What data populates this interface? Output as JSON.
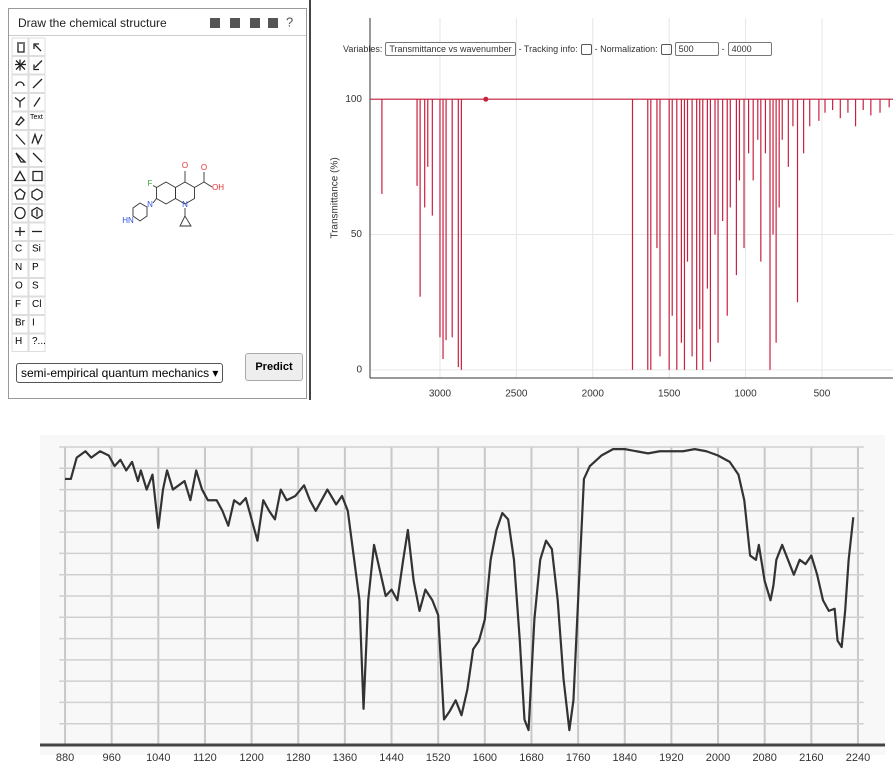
{
  "editor": {
    "title": "Draw the chemical structure",
    "help_icon": "?",
    "text_tool": "Text",
    "elements": [
      "C",
      "Si",
      "N",
      "P",
      "O",
      "S",
      "F",
      "Cl",
      "Br",
      "I",
      "H",
      "?..."
    ],
    "atoms": [
      "F",
      "O",
      "O",
      "OH",
      "N",
      "N",
      "HN"
    ],
    "method": "semi-empirical quantum mechanics",
    "button": "Predict"
  },
  "chart_data": [
    {
      "type": "stick",
      "ylabel": "Transmittance (%)",
      "color": "#c8203f",
      "baseline": 100,
      "controls": {
        "variables_label": "Variables:",
        "variables": "Transmittance vs wavenumber",
        "tracking": "- Tracking info:",
        "normalization": "- Normalization:",
        "min": 500,
        "dash": "-",
        "max": 4000
      },
      "xlim": [
        3458,
        35
      ],
      "ylim": [
        -3,
        130
      ],
      "xticks": [
        3000,
        2500,
        2000,
        1500,
        1000,
        500
      ],
      "yticks": [
        0,
        50,
        100
      ],
      "grid": true,
      "point": {
        "x": 2700,
        "y": 100
      },
      "x": [
        3380,
        3150,
        3130,
        3100,
        3080,
        3050,
        3000,
        2980,
        2960,
        2920,
        2880,
        2860,
        1740,
        1640,
        1620,
        1580,
        1560,
        1500,
        1480,
        1450,
        1420,
        1400,
        1380,
        1350,
        1320,
        1300,
        1280,
        1250,
        1230,
        1200,
        1180,
        1150,
        1120,
        1100,
        1060,
        1040,
        1010,
        980,
        950,
        920,
        900,
        870,
        840,
        820,
        800,
        780,
        760,
        720,
        690,
        660,
        620,
        580,
        520,
        480,
        430,
        380,
        330,
        280,
        230,
        180,
        120,
        60
      ],
      "values": [
        65,
        68,
        27,
        60,
        75,
        57,
        12,
        4,
        11,
        12,
        1,
        0,
        0,
        0,
        0,
        45,
        5,
        0,
        20,
        0,
        10,
        0,
        40,
        5,
        0,
        15,
        0,
        30,
        3,
        50,
        10,
        55,
        20,
        60,
        35,
        70,
        45,
        80,
        70,
        85,
        40,
        80,
        0,
        50,
        10,
        60,
        85,
        75,
        90,
        25,
        80,
        90,
        92,
        95,
        96,
        93,
        95,
        90,
        96,
        94,
        95,
        97
      ]
    },
    {
      "type": "line",
      "color": "#333333",
      "show_ytick_labels": false,
      "grid": true,
      "xlim": [
        870,
        2250
      ],
      "ylim": [
        0,
        14
      ],
      "xticks": [
        880,
        960,
        1040,
        1120,
        1200,
        1280,
        1360,
        1440,
        1520,
        1600,
        1680,
        1760,
        1840,
        1920,
        2000,
        2080,
        2160,
        2240
      ],
      "yticks": [
        0,
        1,
        2,
        3,
        4,
        5,
        6,
        7,
        8,
        9,
        10,
        11,
        12,
        13,
        14
      ],
      "x": [
        880,
        890,
        900,
        915,
        925,
        940,
        955,
        965,
        975,
        985,
        995,
        1005,
        1010,
        1020,
        1030,
        1040,
        1048,
        1055,
        1065,
        1075,
        1085,
        1095,
        1105,
        1115,
        1125,
        1140,
        1150,
        1160,
        1170,
        1180,
        1190,
        1200,
        1210,
        1220,
        1230,
        1240,
        1250,
        1260,
        1275,
        1290,
        1300,
        1310,
        1320,
        1330,
        1345,
        1355,
        1365,
        1375,
        1385,
        1392,
        1400,
        1410,
        1420,
        1430,
        1440,
        1450,
        1460,
        1468,
        1478,
        1488,
        1498,
        1510,
        1520,
        1530,
        1540,
        1550,
        1560,
        1570,
        1580,
        1590,
        1600,
        1610,
        1620,
        1630,
        1640,
        1650,
        1660,
        1668,
        1675,
        1685,
        1695,
        1705,
        1715,
        1725,
        1735,
        1745,
        1752,
        1760,
        1770,
        1780,
        1800,
        1820,
        1840,
        1860,
        1880,
        1900,
        1920,
        1940,
        1960,
        1980,
        2000,
        2020,
        2035,
        2045,
        2055,
        2065,
        2070,
        2080,
        2090,
        2095,
        2100,
        2110,
        2120,
        2130,
        2140,
        2150,
        2160,
        2170,
        2180,
        2190,
        2200,
        2205,
        2212,
        2218,
        2224,
        2232
      ],
      "values": [
        12.5,
        12.5,
        13.5,
        13.8,
        13.5,
        13.8,
        13.6,
        13.1,
        13.4,
        12.9,
        13.3,
        12.4,
        12.9,
        12.0,
        12.7,
        10.2,
        12.0,
        12.9,
        12.0,
        12.2,
        12.4,
        11.5,
        12.9,
        12.0,
        11.5,
        11.5,
        11.0,
        10.3,
        11.5,
        11.3,
        11.6,
        10.6,
        9.6,
        11.5,
        11.0,
        10.6,
        12.0,
        11.5,
        11.7,
        12.2,
        11.5,
        11.0,
        11.5,
        12.0,
        11.3,
        11.7,
        11.0,
        8.9,
        6.8,
        1.7,
        6.8,
        9.4,
        8.2,
        7.0,
        7.3,
        6.8,
        8.7,
        10.1,
        7.7,
        6.3,
        7.3,
        6.8,
        6.1,
        1.2,
        1.6,
        2.1,
        1.4,
        2.6,
        4.5,
        4.9,
        5.9,
        8.7,
        10.1,
        10.9,
        10.6,
        8.7,
        4.9,
        1.2,
        0.7,
        5.9,
        8.7,
        9.6,
        9.2,
        6.8,
        3.1,
        0.7,
        2.1,
        6.8,
        12.5,
        13.1,
        13.6,
        13.9,
        13.9,
        13.8,
        13.7,
        13.8,
        13.8,
        13.8,
        13.9,
        13.8,
        13.6,
        13.3,
        12.7,
        11.5,
        8.9,
        8.7,
        9.4,
        7.7,
        6.8,
        7.5,
        8.7,
        9.4,
        8.7,
        8.0,
        8.7,
        8.5,
        8.9,
        8.0,
        6.8,
        6.3,
        6.4,
        4.9,
        4.6,
        6.3,
        8.7,
        10.7
      ]
    }
  ]
}
